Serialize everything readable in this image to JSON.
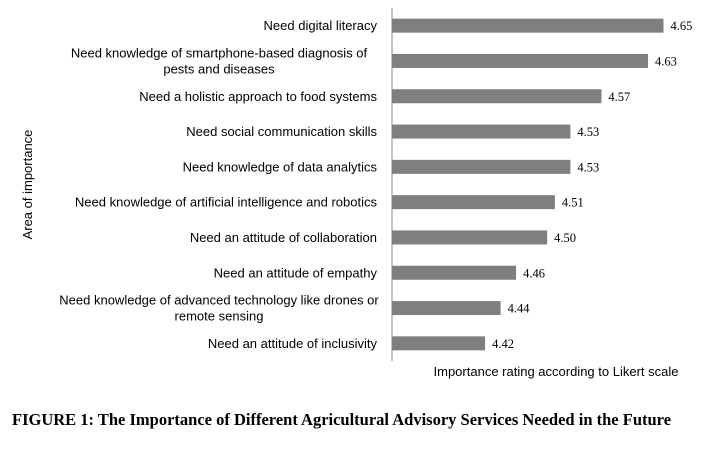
{
  "chart_data": {
    "type": "bar",
    "orientation": "horizontal",
    "categories": [
      "Need digital literacy",
      "Need knowledge of smartphone-based diagnosis of pests and diseases",
      "Need a holistic approach to food systems",
      "Need social communication skills",
      "Need knowledge of data analytics",
      "Need knowledge of artificial intelligence and robotics",
      "Need an attitude of collaboration",
      "Need an attitude of empathy",
      "Need knowledge of advanced technology like drones or remote sensing",
      "Need an attitude of inclusivity"
    ],
    "category_lines": [
      [
        "Need digital literacy"
      ],
      [
        "Need knowledge of smartphone-based diagnosis of",
        "pests and diseases"
      ],
      [
        "Need a holistic approach to food systems"
      ],
      [
        "Need social communication skills"
      ],
      [
        "Need knowledge of data analytics"
      ],
      [
        "Need knowledge of artificial intelligence and robotics"
      ],
      [
        "Need an attitude of collaboration"
      ],
      [
        "Need an attitude of empathy"
      ],
      [
        "Need knowledge of advanced technology like drones or",
        "remote sensing"
      ],
      [
        "Need an attitude of inclusivity"
      ]
    ],
    "values": [
      4.65,
      4.63,
      4.57,
      4.53,
      4.53,
      4.51,
      4.5,
      4.46,
      4.44,
      4.42
    ],
    "value_labels": [
      "4.65",
      "4.63",
      "4.57",
      "4.53",
      "4.53",
      "4.51",
      "4.50",
      "4.46",
      "4.44",
      "4.42"
    ],
    "xlabel": "Importance rating according to Likert scale",
    "ylabel": "Area of importance",
    "xlim": [
      4.3,
      4.67
    ],
    "bar_color": "#7f7f7f",
    "grid": false,
    "legend": "none"
  },
  "caption": "FIGURE 1: The Importance of Different Agricultural Advisory Services Needed in the Future"
}
